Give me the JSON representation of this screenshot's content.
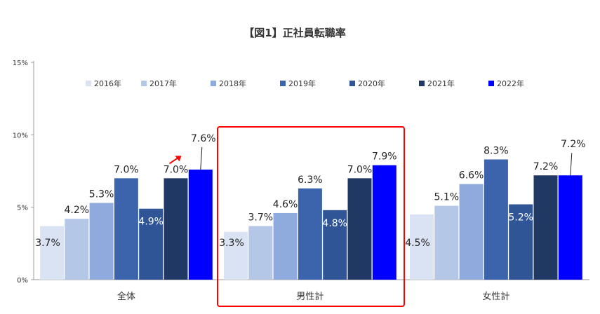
{
  "chart_data": {
    "type": "bar",
    "title": "【図1】正社員転職率",
    "categories": [
      "全体",
      "男性計",
      "女性計"
    ],
    "series": [
      {
        "name": "2016年",
        "values": [
          3.7,
          3.3,
          4.5
        ],
        "labels": [
          "3.7%",
          "3.3%",
          "4.5%"
        ],
        "color": "#dae3f3"
      },
      {
        "name": "2017年",
        "values": [
          4.2,
          3.7,
          5.1
        ],
        "labels": [
          "4.2%",
          "3.7%",
          "5.1%"
        ],
        "color": "#b4c7e7"
      },
      {
        "name": "2018年",
        "values": [
          5.3,
          4.6,
          6.6
        ],
        "labels": [
          "5.3%",
          "4.6%",
          "6.6%"
        ],
        "color": "#8faadc"
      },
      {
        "name": "2019年",
        "values": [
          7.0,
          6.3,
          8.3
        ],
        "labels": [
          "7.0%",
          "6.3%",
          "8.3%"
        ],
        "color": "#3c64ad"
      },
      {
        "name": "2020年",
        "values": [
          4.9,
          4.8,
          5.2
        ],
        "labels": [
          "4.9%",
          "4.8%",
          "5.2%"
        ],
        "color": "#2f5597"
      },
      {
        "name": "2021年",
        "values": [
          7.0,
          7.0,
          7.2
        ],
        "labels": [
          "7.0%",
          "7.0%",
          "7.2%"
        ],
        "color": "#203864"
      },
      {
        "name": "2022年",
        "values": [
          7.6,
          7.9,
          7.2
        ],
        "labels": [
          "7.6%",
          "7.9%",
          "7.2%"
        ],
        "color": "#0000ff"
      }
    ],
    "yticks": [
      "0%",
      "5%",
      "10%",
      "15%"
    ],
    "ylim": [
      0,
      15
    ],
    "legend_position": "top",
    "grid": false,
    "highlight": {
      "category": "男性計",
      "color": "#ff0000"
    },
    "annotation_arrow": {
      "category": "全体",
      "color": "#ff0000"
    }
  }
}
